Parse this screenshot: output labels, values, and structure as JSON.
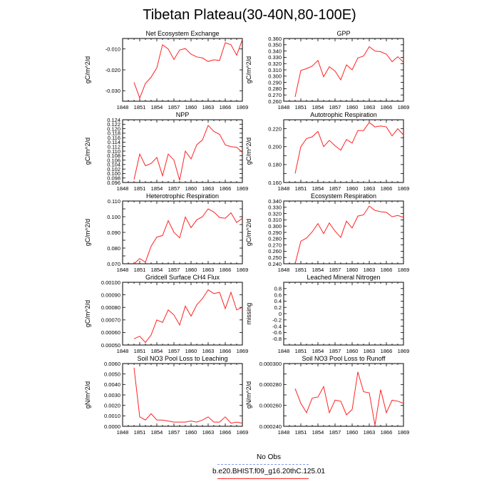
{
  "title": "Tibetan Plateau(30-40N,80-100E)",
  "legend": [
    {
      "label": "No Obs",
      "style": "dashed",
      "color": "#8899ee"
    },
    {
      "label": "b.e20.BHIST.f09_g16.20thC.125.01",
      "style": "solid",
      "color": "#ff2222"
    }
  ],
  "x_tick_labels": [
    "1848",
    "1851",
    "1854",
    "1857",
    "1860",
    "1863",
    "1866",
    "1869"
  ],
  "chart_data": [
    {
      "type": "line",
      "title": "Net Ecosystem Exchange",
      "ylabel": "gC/m^2/d",
      "xlim": [
        1848,
        1869
      ],
      "ylim": [
        -0.035,
        -0.005
      ],
      "yticks": [
        -0.03,
        -0.02,
        -0.01
      ],
      "ytick_labels": [
        "-0.030",
        "-0.020",
        "-0.010"
      ],
      "series": [
        {
          "color": "#ff2222",
          "x": [
            1850,
            1851,
            1852,
            1853,
            1854,
            1855,
            1856,
            1857,
            1858,
            1859,
            1860,
            1861,
            1862,
            1863,
            1864,
            1865,
            1866,
            1867,
            1868,
            1869
          ],
          "values": [
            -0.026,
            -0.0335,
            -0.0265,
            -0.0235,
            -0.019,
            -0.008,
            -0.01,
            -0.015,
            -0.0105,
            -0.0098,
            -0.0125,
            -0.0138,
            -0.0143,
            -0.016,
            -0.0152,
            -0.0155,
            -0.007,
            -0.008,
            -0.013,
            -0.0055
          ]
        }
      ]
    },
    {
      "type": "line",
      "title": "GPP",
      "ylabel": "gC/m^2/d",
      "xlim": [
        1848,
        1869
      ],
      "ylim": [
        0.26,
        0.36
      ],
      "yticks": [
        0.26,
        0.27,
        0.28,
        0.29,
        0.3,
        0.31,
        0.32,
        0.33,
        0.34,
        0.35,
        0.36
      ],
      "ytick_labels": [
        "0.260",
        "0.270",
        "0.280",
        "0.290",
        "0.300",
        "0.310",
        "0.320",
        "0.330",
        "0.340",
        "0.350",
        "0.360"
      ],
      "series": [
        {
          "color": "#ff2222",
          "x": [
            1850,
            1851,
            1852,
            1853,
            1854,
            1855,
            1856,
            1857,
            1858,
            1859,
            1860,
            1861,
            1862,
            1863,
            1864,
            1865,
            1866,
            1867,
            1868,
            1869
          ],
          "values": [
            0.267,
            0.309,
            0.312,
            0.316,
            0.325,
            0.299,
            0.315,
            0.308,
            0.294,
            0.318,
            0.31,
            0.329,
            0.332,
            0.347,
            0.34,
            0.339,
            0.335,
            0.323,
            0.331,
            0.322
          ]
        }
      ]
    },
    {
      "type": "line",
      "title": "NPP",
      "ylabel": "gC/m^2/d",
      "xlim": [
        1848,
        1869
      ],
      "ylim": [
        0.096,
        0.124
      ],
      "yticks": [
        0.096,
        0.098,
        0.1,
        0.102,
        0.104,
        0.106,
        0.108,
        0.11,
        0.112,
        0.114,
        0.116,
        0.118,
        0.12,
        0.122,
        0.124
      ],
      "ytick_labels": [
        "0.096",
        "0.098",
        "0.100",
        "0.102",
        "0.104",
        "0.106",
        "0.108",
        "0.110",
        "0.112",
        "0.114",
        "0.116",
        "0.118",
        "0.120",
        "0.122",
        "0.124"
      ],
      "series": [
        {
          "color": "#ff2222",
          "x": [
            1850,
            1851,
            1852,
            1853,
            1854,
            1855,
            1856,
            1857,
            1858,
            1859,
            1860,
            1861,
            1862,
            1863,
            1864,
            1865,
            1866,
            1867,
            1868,
            1869
          ],
          "values": [
            0.0973,
            0.1087,
            0.1035,
            0.1045,
            0.1072,
            0.099,
            0.1087,
            0.106,
            0.097,
            0.11,
            0.1065,
            0.1128,
            0.115,
            0.1215,
            0.1188,
            0.1175,
            0.1128,
            0.112,
            0.1117,
            0.1095
          ]
        }
      ]
    },
    {
      "type": "line",
      "title": "Autotrophic Respiration",
      "ylabel": "gC/m^2/d",
      "xlim": [
        1848,
        1869
      ],
      "ylim": [
        0.16,
        0.23
      ],
      "yticks": [
        0.16,
        0.17,
        0.18,
        0.19,
        0.2,
        0.21,
        0.22
      ],
      "ytick_labels": [
        "0.160",
        "",
        "0.180",
        "",
        "0.200",
        "",
        "0.220"
      ],
      "series": [
        {
          "color": "#ff2222",
          "x": [
            1850,
            1851,
            1852,
            1853,
            1854,
            1855,
            1856,
            1857,
            1858,
            1859,
            1860,
            1861,
            1862,
            1863,
            1864,
            1865,
            1866,
            1867,
            1868,
            1869
          ],
          "values": [
            0.17,
            0.2,
            0.209,
            0.211,
            0.217,
            0.2,
            0.207,
            0.201,
            0.196,
            0.208,
            0.204,
            0.218,
            0.218,
            0.227,
            0.222,
            0.223,
            0.222,
            0.212,
            0.22,
            0.213
          ]
        }
      ]
    },
    {
      "type": "line",
      "title": "Heterotrophic Respiration",
      "ylabel": "gC/m^2/d",
      "xlim": [
        1848,
        1869
      ],
      "ylim": [
        0.07,
        0.11
      ],
      "yticks": [
        0.07,
        0.075,
        0.08,
        0.085,
        0.09,
        0.095,
        0.1,
        0.105,
        0.11
      ],
      "ytick_labels": [
        "0.070",
        "",
        "0.080",
        "",
        "0.090",
        "",
        "0.100",
        "",
        "0.110"
      ],
      "series": [
        {
          "color": "#ff2222",
          "x": [
            1850,
            1851,
            1852,
            1853,
            1854,
            1855,
            1856,
            1857,
            1858,
            1859,
            1860,
            1861,
            1862,
            1863,
            1864,
            1865,
            1866,
            1867,
            1868,
            1869
          ],
          "values": [
            0.07,
            0.0733,
            0.071,
            0.0812,
            0.087,
            0.088,
            0.0975,
            0.09,
            0.0865,
            0.0998,
            0.093,
            0.098,
            0.1,
            0.105,
            0.103,
            0.0995,
            0.099,
            0.1025,
            0.0963,
            0.099
          ]
        }
      ]
    },
    {
      "type": "line",
      "title": "Ecosystem Respiration",
      "ylabel": "gC/m^2/d",
      "xlim": [
        1848,
        1869
      ],
      "ylim": [
        0.24,
        0.34
      ],
      "yticks": [
        0.24,
        0.25,
        0.26,
        0.27,
        0.28,
        0.29,
        0.3,
        0.31,
        0.32,
        0.33,
        0.34
      ],
      "ytick_labels": [
        "0.240",
        "0.250",
        "0.260",
        "0.270",
        "0.280",
        "0.290",
        "0.300",
        "0.310",
        "0.320",
        "0.330",
        "0.340"
      ],
      "series": [
        {
          "color": "#ff2222",
          "x": [
            1850,
            1851,
            1852,
            1853,
            1854,
            1855,
            1856,
            1857,
            1858,
            1859,
            1860,
            1861,
            1862,
            1863,
            1864,
            1865,
            1866,
            1867,
            1868,
            1869
          ],
          "values": [
            0.24,
            0.276,
            0.281,
            0.291,
            0.304,
            0.288,
            0.305,
            0.292,
            0.282,
            0.308,
            0.297,
            0.316,
            0.318,
            0.332,
            0.325,
            0.323,
            0.322,
            0.315,
            0.317,
            0.314
          ]
        }
      ]
    },
    {
      "type": "line",
      "title": "Gridcell Surface CH4 Flux",
      "ylabel": "gC/m^2/d",
      "xlim": [
        1848,
        1869
      ],
      "ylim": [
        0.0005,
        0.001
      ],
      "yticks": [
        0.0005,
        0.0006,
        0.0007,
        0.0008,
        0.0009,
        0.001
      ],
      "ytick_labels": [
        "0.00050",
        "0.00060",
        "0.00070",
        "0.00080",
        "0.00090",
        "0.00100"
      ],
      "series": [
        {
          "color": "#ff2222",
          "x": [
            1850,
            1851,
            1852,
            1853,
            1854,
            1855,
            1856,
            1857,
            1858,
            1859,
            1860,
            1861,
            1862,
            1863,
            1864,
            1865,
            1866,
            1867,
            1868,
            1869
          ],
          "values": [
            0.00055,
            0.00057,
            0.00052,
            0.00058,
            0.0007,
            0.00068,
            0.00078,
            0.00074,
            0.00066,
            0.00081,
            0.00073,
            0.00082,
            0.00087,
            0.00094,
            0.00091,
            0.00092,
            0.00079,
            0.00092,
            0.00078,
            0.0008
          ]
        }
      ]
    },
    {
      "type": "line",
      "title": "Leached Mineral Nitrogen",
      "ylabel": "missing",
      "xlim": [
        1848,
        1869
      ],
      "ylim": [
        -1.0,
        1.0
      ],
      "yticks": [
        -0.8,
        -0.6,
        -0.4,
        -0.2,
        0,
        0.2,
        0.4,
        0.6,
        0.8
      ],
      "ytick_labels": [
        "-0.8",
        "-0.6",
        "-0.4",
        "-0.2",
        "0",
        "0.2",
        "0.4",
        "0.6",
        "0.8"
      ],
      "series": []
    },
    {
      "type": "line",
      "title": "Soil NO3 Pool Loss to Leaching",
      "ylabel": "gN/m^2/d",
      "xlim": [
        1848,
        1869
      ],
      "ylim": [
        0.0,
        0.006
      ],
      "yticks": [
        0,
        0.001,
        0.002,
        0.003,
        0.004,
        0.005,
        0.006
      ],
      "ytick_labels": [
        "0.0000",
        "0.0010",
        "0.0020",
        "0.0030",
        "0.0040",
        "0.0050",
        "0.0060"
      ],
      "series": [
        {
          "color": "#ff2222",
          "x": [
            1850,
            1851,
            1852,
            1853,
            1854,
            1855,
            1856,
            1857,
            1858,
            1859,
            1860,
            1861,
            1862,
            1863,
            1864,
            1865,
            1866,
            1867,
            1868,
            1869
          ],
          "values": [
            0.0056,
            0.0009,
            0.0006,
            0.0012,
            0.0006,
            0.0006,
            0.0005,
            0.0004,
            0.0004,
            0.0004,
            0.0005,
            0.0004,
            0.0006,
            0.0009,
            0.0004,
            0.0004,
            0.0009,
            0.0003,
            0.0004,
            0.0003
          ]
        }
      ]
    },
    {
      "type": "line",
      "title": "Soil NO3 Pool Loss to Runoff",
      "ylabel": "gN/m^2/d",
      "xlim": [
        1848,
        1869
      ],
      "ylim": [
        0.00024,
        0.0003
      ],
      "yticks": [
        0.00024,
        0.00025,
        0.00026,
        0.00027,
        0.00028,
        0.00029,
        0.0003
      ],
      "ytick_labels": [
        "0.000240",
        "",
        "0.000260",
        "",
        "0.000280",
        "",
        "0.000300"
      ],
      "series": [
        {
          "color": "#ff2222",
          "x": [
            1850,
            1851,
            1852,
            1853,
            1854,
            1855,
            1856,
            1857,
            1858,
            1859,
            1860,
            1861,
            1862,
            1863,
            1864,
            1865,
            1866,
            1867,
            1868,
            1869
          ],
          "values": [
            0.000276,
            0.000262,
            0.000253,
            0.000267,
            0.000268,
            0.000278,
            0.000253,
            0.000265,
            0.000264,
            0.000251,
            0.000256,
            0.000292,
            0.000273,
            0.000272,
            0.000241,
            0.000275,
            0.000253,
            0.000265,
            0.000264,
            0.000262
          ]
        }
      ]
    }
  ]
}
